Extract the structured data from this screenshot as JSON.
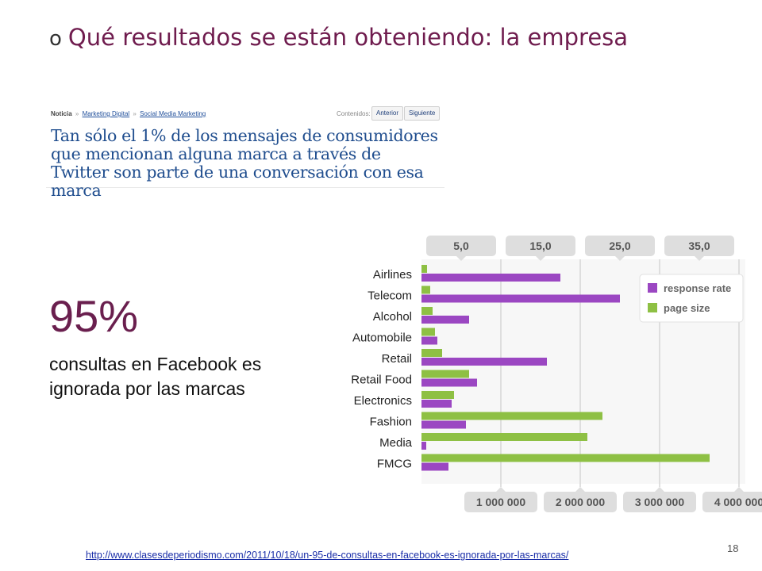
{
  "slide": {
    "bullet": "o",
    "title": "Qué resultados se están obteniendo: la empresa",
    "big_number": "95%",
    "caption": "consultas en Facebook es ignorada por las marcas",
    "source_url": "http://www.clasesdeperiodismo.com/2011/10/18/un-95-de-consultas-en-facebook-es-ignorada-por-las-marcas/",
    "page_number": "18"
  },
  "clipping": {
    "breadcrumb": {
      "section": "Noticia",
      "sep": "»",
      "link1": "Marketing Digital",
      "link2": "Social Media Marketing"
    },
    "contents_label": "Contenidos:",
    "prev_button": "Anterior",
    "next_button": "Siguiente",
    "headline": "Tan sólo el 1% de los mensajes de consumidores que mencionan alguna marca a través de Twitter son parte de una conversación con esa marca"
  },
  "chart_data": {
    "type": "bar",
    "orientation": "horizontal",
    "categories": [
      "Airlines",
      "Telecom",
      "Alcohol",
      "Automobile",
      "Retail",
      "Retail Food",
      "Electronics",
      "Fashion",
      "Media",
      "FMCG"
    ],
    "series": [
      {
        "name": "response rate",
        "color": "#9b47c2",
        "axis": "top",
        "values": [
          17.5,
          25.0,
          6.0,
          2.0,
          15.8,
          7.0,
          3.8,
          5.6,
          0.6,
          3.4
        ]
      },
      {
        "name": "page size",
        "color": "#8ec044",
        "axis": "bottom",
        "values": [
          70000,
          110000,
          140000,
          170000,
          260000,
          600000,
          410000,
          2280000,
          2090000,
          3630000
        ]
      }
    ],
    "top_axis": {
      "ticks": [
        "5,0",
        "15,0",
        "25,0",
        "35,0"
      ],
      "tick_values": [
        5,
        15,
        25,
        35
      ],
      "range": [
        0,
        40
      ]
    },
    "bottom_axis": {
      "ticks": [
        "1 000 000",
        "2 000 000",
        "3 000 000",
        "4 000 000"
      ],
      "tick_values": [
        1000000,
        2000000,
        3000000,
        4000000
      ],
      "range": [
        0,
        4000000
      ]
    },
    "legend": {
      "placement": "top-right",
      "entries": [
        "response rate",
        "page size"
      ]
    },
    "grid": true
  }
}
